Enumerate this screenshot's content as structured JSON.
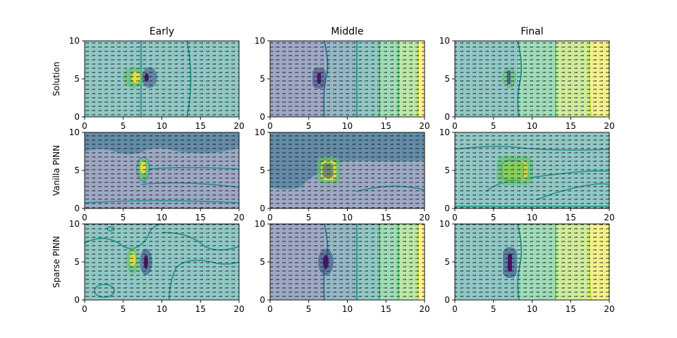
{
  "chart_data": {
    "type": "heatmap",
    "subtype": "filled-contour with quiver overlay",
    "layout": {
      "rows": 3,
      "cols": 3
    },
    "column_titles": [
      "Early",
      "Middle",
      "Final"
    ],
    "row_labels": [
      "Solution",
      "Vanilla PINN",
      "Sparse PINN"
    ],
    "xlim": [
      0,
      20
    ],
    "ylim": [
      0,
      10
    ],
    "xticks": [
      "0",
      "5",
      "10",
      "15",
      "20"
    ],
    "yticks": [
      "0",
      "5",
      "10"
    ],
    "colormap": [
      "#440154",
      "#3b528b",
      "#21918c",
      "#5ec962",
      "#fde725"
    ],
    "fill_alpha": 0.5,
    "panels": [
      {
        "row": "Solution",
        "col": "Early",
        "field": "uniform-low with dipole",
        "dipole_x": 7,
        "dipole_y": 5,
        "levels": [
          "#21918c",
          "#21918c"
        ]
      },
      {
        "row": "Solution",
        "col": "Middle",
        "field": "left-to-right gradient",
        "dipole_x": 7,
        "dipole_y": 5,
        "contour_x": [
          7.5,
          11.2,
          14.2,
          16.7,
          19.2
        ]
      },
      {
        "row": "Solution",
        "col": "Final",
        "field": "left-to-right gradient",
        "dipole_x": 7,
        "dipole_y": 5,
        "contour_x": [
          8.2,
          13,
          17.7
        ]
      },
      {
        "row": "Vanilla PINN",
        "col": "Early",
        "field": "low with hotspot",
        "dipole_x": 7.5,
        "dipole_y": 5
      },
      {
        "row": "Vanilla PINN",
        "col": "Middle",
        "field": "low with hotspot",
        "dipole_x": 7.5,
        "dipole_y": 5
      },
      {
        "row": "Vanilla PINN",
        "col": "Final",
        "field": "moderate with hotspot",
        "dipole_x": 8,
        "dipole_y": 5
      },
      {
        "row": "Sparse PINN",
        "col": "Early",
        "field": "uniform with dipole",
        "dipole_x": 7,
        "dipole_y": 5
      },
      {
        "row": "Sparse PINN",
        "col": "Middle",
        "field": "left-to-right gradient",
        "dipole_x": 7,
        "dipole_y": 5,
        "contour_x": [
          7.5,
          11.2,
          14.2,
          16.7,
          19.2
        ]
      },
      {
        "row": "Sparse PINN",
        "col": "Final",
        "field": "left-to-right gradient",
        "dipole_x": 7,
        "dipole_y": 5,
        "contour_x": [
          8.2,
          13,
          17.7
        ]
      }
    ]
  }
}
